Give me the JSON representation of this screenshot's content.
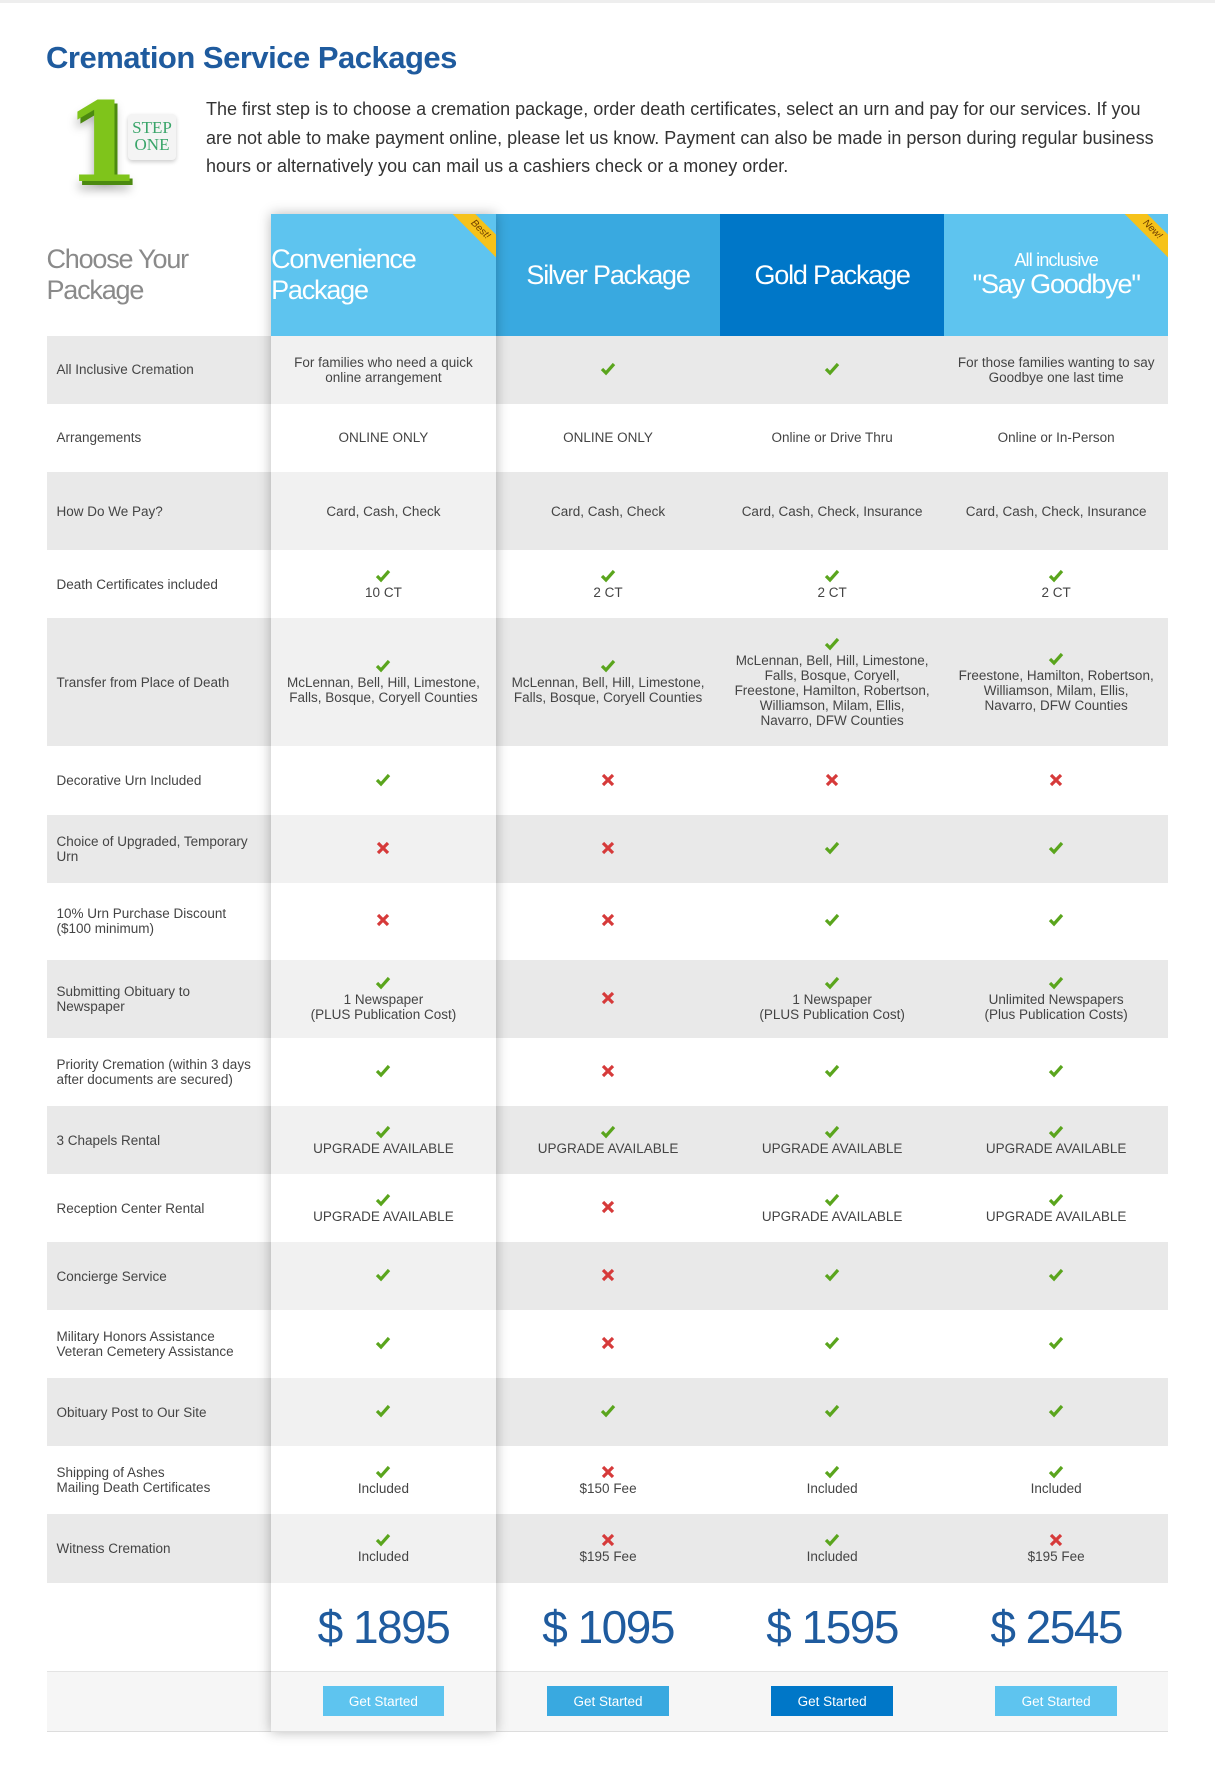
{
  "header": {
    "title": "Cremation Service Packages",
    "step": {
      "number": "1",
      "text": "STEP\nONE"
    },
    "intro": "The first step is to choose a cremation package, order death certificates, select an urn and pay for our services. If you are not able to make payment online, please let us know. Payment can also be made in person during regular business hours or alternatively you can mail us a cashiers check or a money order."
  },
  "table": {
    "corner": "Choose Your Package",
    "columns": [
      {
        "name": "Convenience Package",
        "badge": "Best!",
        "color": "#5ec4ef",
        "price": "$ 1895",
        "button": "Get Started"
      },
      {
        "name": "Silver Package",
        "color": "#39a9e0",
        "price": "$ 1095",
        "button": "Get Started"
      },
      {
        "name": "Gold Package",
        "color": "#0077c8",
        "price": "$ 1595",
        "button": "Get Started"
      },
      {
        "pre": "All inclusive",
        "name": "\"Say Goodbye\"",
        "badge": "New!",
        "color": "#5ec4ef",
        "price": "$ 2545",
        "button": "Get Started"
      }
    ],
    "rows": [
      {
        "label": "All Inclusive Cremation",
        "cells": [
          {
            "text": "For families who need a quick online arrangement"
          },
          {
            "mark": "check"
          },
          {
            "mark": "check"
          },
          {
            "text": "For those families wanting to say Goodbye one last time"
          }
        ]
      },
      {
        "label": "Arrangements",
        "cells": [
          {
            "text": "ONLINE ONLY"
          },
          {
            "text": "ONLINE ONLY"
          },
          {
            "text": "Online or Drive Thru"
          },
          {
            "text": "Online or In-Person"
          }
        ]
      },
      {
        "label": "How Do We Pay?",
        "cells": [
          {
            "text": "Card, Cash, Check"
          },
          {
            "text": "Card, Cash, Check"
          },
          {
            "text": "Card, Cash, Check, Insurance"
          },
          {
            "text": "Card, Cash, Check, Insurance"
          }
        ]
      },
      {
        "label": "Death Certificates included",
        "cells": [
          {
            "mark": "check",
            "text": "10 CT"
          },
          {
            "mark": "check",
            "text": "2 CT"
          },
          {
            "mark": "check",
            "text": "2 CT"
          },
          {
            "mark": "check",
            "text": "2 CT"
          }
        ]
      },
      {
        "label": "Transfer from Place of Death",
        "cells": [
          {
            "mark": "check",
            "text": "McLennan, Bell, Hill, Limestone, Falls, Bosque, Coryell Counties"
          },
          {
            "mark": "check",
            "text": "McLennan, Bell, Hill, Limestone, Falls, Bosque, Coryell Counties"
          },
          {
            "mark": "check",
            "text": "McLennan, Bell, Hill, Limestone, Falls, Bosque, Coryell, Freestone, Hamilton, Robertson, Williamson, Milam, Ellis, Navarro, DFW Counties"
          },
          {
            "mark": "check",
            "text": "Freestone, Hamilton, Robertson, Williamson, Milam, Ellis, Navarro, DFW Counties"
          }
        ]
      },
      {
        "label": "Decorative Urn Included",
        "cells": [
          {
            "mark": "check"
          },
          {
            "mark": "cross"
          },
          {
            "mark": "cross"
          },
          {
            "mark": "cross"
          }
        ]
      },
      {
        "label": "Choice of Upgraded, Temporary Urn",
        "cells": [
          {
            "mark": "cross"
          },
          {
            "mark": "cross"
          },
          {
            "mark": "check"
          },
          {
            "mark": "check"
          }
        ]
      },
      {
        "label": "10% Urn Purchase Discount ($100 minimum)",
        "cells": [
          {
            "mark": "cross"
          },
          {
            "mark": "cross"
          },
          {
            "mark": "check"
          },
          {
            "mark": "check"
          }
        ]
      },
      {
        "label": "Submitting Obituary to Newspaper",
        "cells": [
          {
            "mark": "check",
            "text": "1 Newspaper\n(PLUS Publication Cost)"
          },
          {
            "mark": "cross"
          },
          {
            "mark": "check",
            "text": "1 Newspaper\n(PLUS Publication Cost)"
          },
          {
            "mark": "check",
            "text": "Unlimited Newspapers\n(Plus Publication Costs)"
          }
        ]
      },
      {
        "label": "Priority Cremation (within 3 days after documents are secured)",
        "cells": [
          {
            "mark": "check"
          },
          {
            "mark": "cross"
          },
          {
            "mark": "check"
          },
          {
            "mark": "check"
          }
        ]
      },
      {
        "label": "3 Chapels Rental",
        "cells": [
          {
            "mark": "check",
            "text": "UPGRADE AVAILABLE"
          },
          {
            "mark": "check",
            "text": "UPGRADE AVAILABLE"
          },
          {
            "mark": "check",
            "text": "UPGRADE AVAILABLE"
          },
          {
            "mark": "check",
            "text": "UPGRADE AVAILABLE"
          }
        ]
      },
      {
        "label": "Reception Center Rental",
        "cells": [
          {
            "mark": "check",
            "text": "UPGRADE AVAILABLE"
          },
          {
            "mark": "cross"
          },
          {
            "mark": "check",
            "text": "UPGRADE AVAILABLE"
          },
          {
            "mark": "check",
            "text": "UPGRADE AVAILABLE"
          }
        ]
      },
      {
        "label": "Concierge Service",
        "cells": [
          {
            "mark": "check"
          },
          {
            "mark": "cross"
          },
          {
            "mark": "check"
          },
          {
            "mark": "check"
          }
        ]
      },
      {
        "label": "Military Honors Assistance\nVeteran Cemetery Assistance",
        "cells": [
          {
            "mark": "check"
          },
          {
            "mark": "cross"
          },
          {
            "mark": "check"
          },
          {
            "mark": "check"
          }
        ]
      },
      {
        "label": "Obituary Post to Our Site",
        "cells": [
          {
            "mark": "check"
          },
          {
            "mark": "check"
          },
          {
            "mark": "check"
          },
          {
            "mark": "check"
          }
        ]
      },
      {
        "label": "Shipping of Ashes\nMailing Death Certificates",
        "cells": [
          {
            "mark": "check",
            "text": "Included"
          },
          {
            "mark": "cross",
            "text": "$150 Fee"
          },
          {
            "mark": "check",
            "text": "Included"
          },
          {
            "mark": "check",
            "text": "Included"
          }
        ]
      },
      {
        "label": "Witness Cremation",
        "cells": [
          {
            "mark": "check",
            "text": "Included"
          },
          {
            "mark": "cross",
            "text": "$195 Fee"
          },
          {
            "mark": "check",
            "text": "Included"
          },
          {
            "mark": "cross",
            "text": "$195 Fee"
          }
        ]
      }
    ]
  }
}
